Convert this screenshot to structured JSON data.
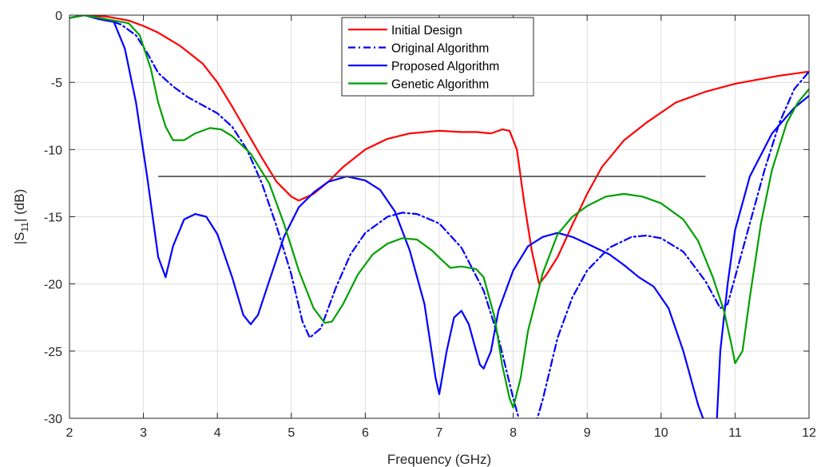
{
  "chart_data": {
    "type": "line",
    "xlabel": "Frequency (GHz)",
    "ylabel_base": "|S",
    "ylabel_sub": "11",
    "ylabel_tail": "| (dB)",
    "xlim": [
      2,
      12
    ],
    "ylim": [
      -30,
      0
    ],
    "xticks": [
      2,
      3,
      4,
      5,
      6,
      7,
      8,
      9,
      10,
      11,
      12
    ],
    "yticks": [
      0,
      -5,
      -10,
      -15,
      -20,
      -25,
      -30
    ],
    "grid": true,
    "legend_position": "top-center",
    "reference_line": {
      "x": [
        3.2,
        10.6
      ],
      "y": -12,
      "color": "#555555"
    },
    "series": [
      {
        "name": "Initial Design",
        "color": "#ff0000",
        "dash": "solid",
        "points": [
          [
            2,
            -0.2
          ],
          [
            2.2,
            0
          ],
          [
            2.5,
            -0.1
          ],
          [
            2.8,
            -0.4
          ],
          [
            3.0,
            -0.8
          ],
          [
            3.2,
            -1.3
          ],
          [
            3.5,
            -2.3
          ],
          [
            3.8,
            -3.6
          ],
          [
            4.0,
            -5.0
          ],
          [
            4.2,
            -6.8
          ],
          [
            4.4,
            -8.7
          ],
          [
            4.6,
            -10.6
          ],
          [
            4.8,
            -12.4
          ],
          [
            5.0,
            -13.5
          ],
          [
            5.1,
            -13.8
          ],
          [
            5.3,
            -13.3
          ],
          [
            5.5,
            -12.4
          ],
          [
            5.7,
            -11.3
          ],
          [
            6.0,
            -10.0
          ],
          [
            6.3,
            -9.2
          ],
          [
            6.6,
            -8.8
          ],
          [
            7.0,
            -8.6
          ],
          [
            7.3,
            -8.7
          ],
          [
            7.5,
            -8.7
          ],
          [
            7.7,
            -8.8
          ],
          [
            7.85,
            -8.5
          ],
          [
            7.95,
            -8.6
          ],
          [
            8.05,
            -10.0
          ],
          [
            8.15,
            -14.0
          ],
          [
            8.25,
            -17.5
          ],
          [
            8.35,
            -20.0
          ],
          [
            8.45,
            -19.3
          ],
          [
            8.6,
            -18.0
          ],
          [
            8.8,
            -15.6
          ],
          [
            9.0,
            -13.3
          ],
          [
            9.2,
            -11.3
          ],
          [
            9.5,
            -9.3
          ],
          [
            9.8,
            -8.0
          ],
          [
            10.2,
            -6.5
          ],
          [
            10.6,
            -5.7
          ],
          [
            11.0,
            -5.1
          ],
          [
            11.3,
            -4.8
          ],
          [
            11.6,
            -4.5
          ],
          [
            12.0,
            -4.2
          ]
        ]
      },
      {
        "name": "Original Algorithm",
        "color": "#0000ff",
        "dash": "dashdot",
        "points": [
          [
            2,
            -0.2
          ],
          [
            2.2,
            0
          ],
          [
            2.5,
            -0.3
          ],
          [
            2.7,
            -0.7
          ],
          [
            2.9,
            -1.5
          ],
          [
            3.05,
            -2.8
          ],
          [
            3.2,
            -4.3
          ],
          [
            3.4,
            -5.3
          ],
          [
            3.6,
            -6.1
          ],
          [
            3.8,
            -6.7
          ],
          [
            4.0,
            -7.3
          ],
          [
            4.2,
            -8.3
          ],
          [
            4.4,
            -10.0
          ],
          [
            4.6,
            -12.5
          ],
          [
            4.8,
            -15.7
          ],
          [
            5.0,
            -19.3
          ],
          [
            5.15,
            -22.8
          ],
          [
            5.25,
            -24.0
          ],
          [
            5.4,
            -23.3
          ],
          [
            5.6,
            -20.3
          ],
          [
            5.8,
            -17.8
          ],
          [
            6.0,
            -16.2
          ],
          [
            6.3,
            -15.0
          ],
          [
            6.5,
            -14.7
          ],
          [
            6.7,
            -14.8
          ],
          [
            7.0,
            -15.5
          ],
          [
            7.3,
            -17.3
          ],
          [
            7.6,
            -20.5
          ],
          [
            7.8,
            -24.0
          ],
          [
            8.0,
            -28.5
          ],
          [
            8.1,
            -30.5
          ]
        ]
      },
      {
        "name": "Original Algorithm (cont.)",
        "color": "#0000ff",
        "dash": "dashdot",
        "legend": false,
        "points": [
          [
            8.3,
            -30.5
          ],
          [
            8.4,
            -28.6
          ],
          [
            8.6,
            -24.0
          ],
          [
            8.8,
            -21.0
          ],
          [
            9.0,
            -19.0
          ],
          [
            9.3,
            -17.3
          ],
          [
            9.6,
            -16.5
          ],
          [
            9.8,
            -16.4
          ],
          [
            10.0,
            -16.6
          ],
          [
            10.3,
            -17.6
          ],
          [
            10.6,
            -19.8
          ],
          [
            10.8,
            -21.8
          ],
          [
            10.9,
            -21.5
          ],
          [
            11.0,
            -19.5
          ],
          [
            11.2,
            -15.5
          ],
          [
            11.4,
            -11.5
          ],
          [
            11.6,
            -8.0
          ],
          [
            11.8,
            -5.5
          ],
          [
            12.0,
            -4.2
          ]
        ]
      },
      {
        "name": "Proposed Algorithm",
        "color": "#0000ff",
        "dash": "solid",
        "points": [
          [
            2,
            -0.2
          ],
          [
            2.2,
            0
          ],
          [
            2.4,
            -0.3
          ],
          [
            2.6,
            -0.5
          ],
          [
            2.75,
            -2.5
          ],
          [
            2.9,
            -6.5
          ],
          [
            3.05,
            -12.0
          ],
          [
            3.2,
            -18.0
          ],
          [
            3.3,
            -19.5
          ],
          [
            3.4,
            -17.2
          ],
          [
            3.55,
            -15.2
          ],
          [
            3.7,
            -14.8
          ],
          [
            3.85,
            -15.0
          ],
          [
            4.0,
            -16.3
          ],
          [
            4.2,
            -19.5
          ],
          [
            4.35,
            -22.3
          ],
          [
            4.45,
            -23.0
          ],
          [
            4.55,
            -22.3
          ],
          [
            4.7,
            -19.8
          ],
          [
            4.9,
            -16.5
          ],
          [
            5.1,
            -14.3
          ],
          [
            5.3,
            -13.2
          ],
          [
            5.5,
            -12.4
          ],
          [
            5.75,
            -12.0
          ],
          [
            6.0,
            -12.3
          ],
          [
            6.2,
            -13.0
          ],
          [
            6.4,
            -14.6
          ],
          [
            6.6,
            -17.5
          ],
          [
            6.8,
            -21.5
          ],
          [
            6.95,
            -27.0
          ],
          [
            7.0,
            -28.2
          ],
          [
            7.1,
            -25.0
          ],
          [
            7.2,
            -22.5
          ],
          [
            7.3,
            -22.0
          ],
          [
            7.4,
            -23.0
          ],
          [
            7.55,
            -26.0
          ],
          [
            7.6,
            -26.3
          ],
          [
            7.7,
            -25.0
          ],
          [
            7.8,
            -22.0
          ],
          [
            8.0,
            -19.0
          ],
          [
            8.2,
            -17.2
          ],
          [
            8.4,
            -16.5
          ],
          [
            8.6,
            -16.2
          ],
          [
            8.8,
            -16.5
          ],
          [
            9.0,
            -17.0
          ],
          [
            9.3,
            -17.8
          ],
          [
            9.5,
            -18.6
          ],
          [
            9.7,
            -19.5
          ],
          [
            9.9,
            -20.2
          ],
          [
            10.1,
            -21.8
          ],
          [
            10.3,
            -25.0
          ],
          [
            10.5,
            -29.0
          ],
          [
            10.6,
            -30.5
          ]
        ]
      },
      {
        "name": "Proposed Algorithm (cont.)",
        "color": "#0000ff",
        "dash": "solid",
        "legend": false,
        "points": [
          [
            10.75,
            -30.5
          ],
          [
            10.8,
            -25.0
          ],
          [
            10.9,
            -20.0
          ],
          [
            11.0,
            -16.0
          ],
          [
            11.2,
            -12.0
          ],
          [
            11.5,
            -8.8
          ],
          [
            11.8,
            -6.9
          ],
          [
            12.0,
            -6.0
          ]
        ]
      },
      {
        "name": "Genetic Algorithm",
        "color": "#00a000",
        "dash": "solid",
        "points": [
          [
            2,
            -0.2
          ],
          [
            2.2,
            0
          ],
          [
            2.5,
            -0.3
          ],
          [
            2.8,
            -0.6
          ],
          [
            2.95,
            -1.5
          ],
          [
            3.1,
            -4.0
          ],
          [
            3.2,
            -6.5
          ],
          [
            3.3,
            -8.3
          ],
          [
            3.4,
            -9.3
          ],
          [
            3.55,
            -9.3
          ],
          [
            3.7,
            -8.8
          ],
          [
            3.9,
            -8.4
          ],
          [
            4.05,
            -8.5
          ],
          [
            4.2,
            -9.0
          ],
          [
            4.45,
            -10.3
          ],
          [
            4.7,
            -12.5
          ],
          [
            4.9,
            -15.5
          ],
          [
            5.1,
            -19.0
          ],
          [
            5.3,
            -21.8
          ],
          [
            5.45,
            -22.9
          ],
          [
            5.55,
            -22.8
          ],
          [
            5.7,
            -21.5
          ],
          [
            5.9,
            -19.3
          ],
          [
            6.1,
            -17.8
          ],
          [
            6.3,
            -17.0
          ],
          [
            6.5,
            -16.6
          ],
          [
            6.7,
            -16.7
          ],
          [
            6.9,
            -17.5
          ],
          [
            7.05,
            -18.3
          ],
          [
            7.15,
            -18.8
          ],
          [
            7.3,
            -18.7
          ],
          [
            7.5,
            -18.9
          ],
          [
            7.6,
            -19.5
          ],
          [
            7.75,
            -22.5
          ],
          [
            7.85,
            -26.0
          ],
          [
            7.95,
            -28.5
          ],
          [
            8.0,
            -29.2
          ],
          [
            8.1,
            -27.0
          ],
          [
            8.2,
            -23.5
          ],
          [
            8.4,
            -19.2
          ],
          [
            8.6,
            -16.3
          ],
          [
            8.8,
            -15.0
          ],
          [
            9.0,
            -14.2
          ],
          [
            9.25,
            -13.5
          ],
          [
            9.5,
            -13.3
          ],
          [
            9.75,
            -13.5
          ],
          [
            10.0,
            -14.0
          ],
          [
            10.3,
            -15.2
          ],
          [
            10.5,
            -16.8
          ],
          [
            10.7,
            -19.5
          ],
          [
            10.85,
            -22.0
          ],
          [
            10.95,
            -24.5
          ],
          [
            11.0,
            -25.9
          ],
          [
            11.1,
            -25.0
          ],
          [
            11.2,
            -21.0
          ],
          [
            11.35,
            -15.5
          ],
          [
            11.5,
            -11.5
          ],
          [
            11.7,
            -8.0
          ],
          [
            11.85,
            -6.5
          ],
          [
            12.0,
            -5.5
          ]
        ]
      }
    ]
  }
}
